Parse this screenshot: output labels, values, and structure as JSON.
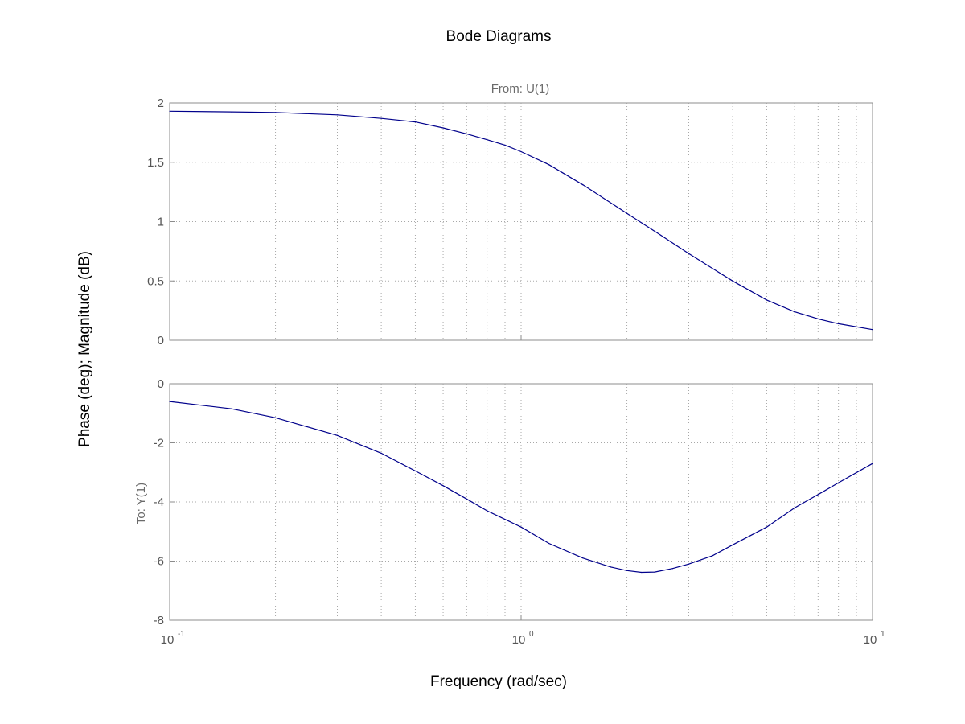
{
  "chart_data": {
    "type": "line",
    "title": "Bode Diagrams",
    "subtitle": "From: U(1)",
    "xlabel": "Frequency (rad/sec)",
    "ylabel": "Phase (deg); Magnitude (dB)",
    "row_label": "To: Y(1)",
    "x_scale": "log",
    "xlim": [
      0.1,
      10
    ],
    "x_ticks": [
      {
        "base": "10",
        "exp": "-1"
      },
      {
        "base": "10",
        "exp": "0"
      },
      {
        "base": "10",
        "exp": "1"
      }
    ],
    "grid": true,
    "line_color": "#00008b",
    "panels": [
      {
        "name": "magnitude",
        "ylim": [
          0,
          2
        ],
        "yticks": [
          "0",
          "0.5",
          "1",
          "1.5",
          "2"
        ],
        "x": [
          0.1,
          0.15,
          0.2,
          0.3,
          0.4,
          0.5,
          0.6,
          0.7,
          0.8,
          0.9,
          1.0,
          1.2,
          1.5,
          2.0,
          2.5,
          3.0,
          4.0,
          5.0,
          6.0,
          7.0,
          8.0,
          10.0
        ],
        "y": [
          1.93,
          1.925,
          1.92,
          1.9,
          1.87,
          1.84,
          1.79,
          1.74,
          1.69,
          1.645,
          1.59,
          1.48,
          1.31,
          1.07,
          0.885,
          0.73,
          0.5,
          0.34,
          0.24,
          0.18,
          0.14,
          0.09
        ]
      },
      {
        "name": "phase",
        "ylim": [
          -8,
          0
        ],
        "yticks": [
          "-8",
          "-6",
          "-4",
          "-2",
          "0"
        ],
        "x": [
          0.1,
          0.15,
          0.2,
          0.3,
          0.4,
          0.5,
          0.6,
          0.7,
          0.8,
          1.0,
          1.2,
          1.5,
          1.8,
          2.0,
          2.2,
          2.4,
          2.7,
          3.0,
          3.5,
          4.0,
          5.0,
          6.0,
          7.0,
          8.0,
          10.0
        ],
        "y": [
          -0.6,
          -0.85,
          -1.15,
          -1.75,
          -2.35,
          -2.95,
          -3.45,
          -3.9,
          -4.3,
          -4.85,
          -5.4,
          -5.9,
          -6.2,
          -6.32,
          -6.38,
          -6.37,
          -6.25,
          -6.1,
          -5.82,
          -5.45,
          -4.85,
          -4.2,
          -3.75,
          -3.35,
          -2.7
        ]
      }
    ]
  }
}
